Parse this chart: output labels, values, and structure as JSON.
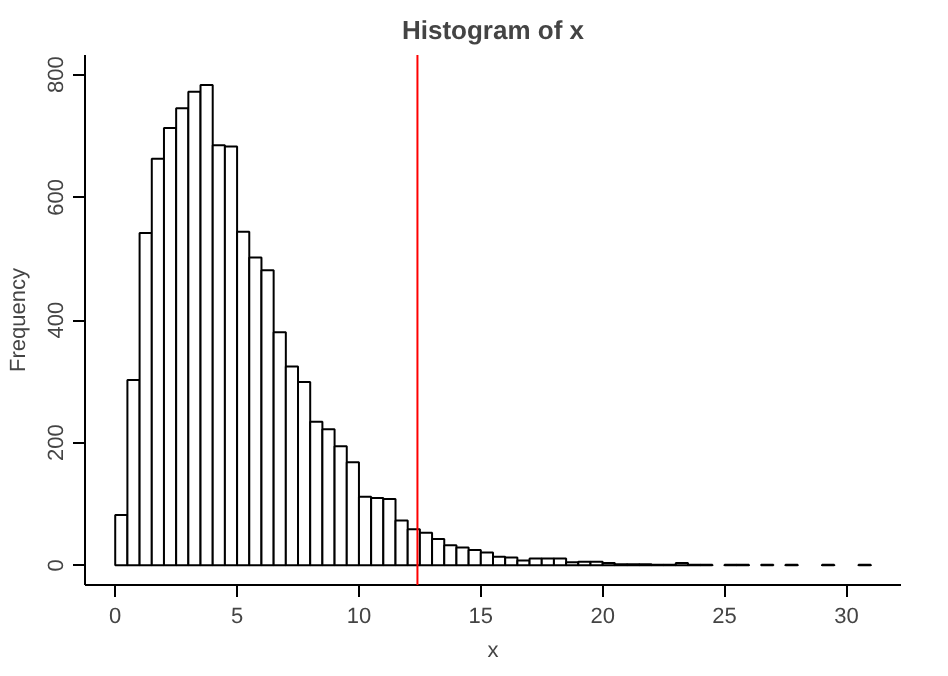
{
  "chart_data": {
    "type": "histogram",
    "title": "Histogram of x",
    "xlabel": "x",
    "ylabel": "Frequency",
    "bins": [
      0,
      0.5,
      1,
      1.5,
      2,
      2.5,
      3,
      3.5,
      4,
      4.5,
      5,
      5.5,
      6,
      6.5,
      7,
      7.5,
      8,
      8.5,
      9,
      9.5,
      10,
      10.5,
      11,
      11.5,
      12,
      12.5,
      13,
      13.5,
      14,
      14.5,
      15,
      15.5,
      16,
      16.5,
      17,
      17.5,
      18,
      18.5,
      19,
      19.5,
      20,
      20.5,
      21,
      21.5,
      22,
      22.5,
      23,
      23.5,
      24,
      24.5,
      25,
      25.5,
      26,
      26.5,
      27,
      27.5,
      28,
      28.5,
      29,
      29.5,
      30,
      30.5,
      31
    ],
    "values": [
      82,
      302,
      542,
      663,
      713,
      745,
      772,
      783,
      685,
      683,
      544,
      502,
      481,
      380,
      324,
      299,
      234,
      222,
      194,
      168,
      112,
      110,
      108,
      73,
      59,
      53,
      43,
      33,
      29,
      25,
      21,
      14,
      13,
      8,
      11,
      11,
      11,
      5,
      6,
      6,
      4,
      2,
      2,
      2,
      1,
      1,
      4,
      1,
      1,
      0,
      1,
      1,
      0,
      1,
      0,
      1,
      0,
      0,
      1,
      0,
      0,
      1
    ],
    "color": "#ffffff",
    "xlim": [
      -1.24,
      32.24
    ],
    "ylim": [
      -32,
      832
    ],
    "xticks": [
      0,
      5,
      10,
      15,
      20,
      25,
      30
    ],
    "yticks": [
      0,
      200,
      400,
      600,
      800
    ],
    "ref_lines": [
      {
        "axis": "x",
        "value": 12.4,
        "color": "#ff0000"
      }
    ],
    "grid": false
  }
}
